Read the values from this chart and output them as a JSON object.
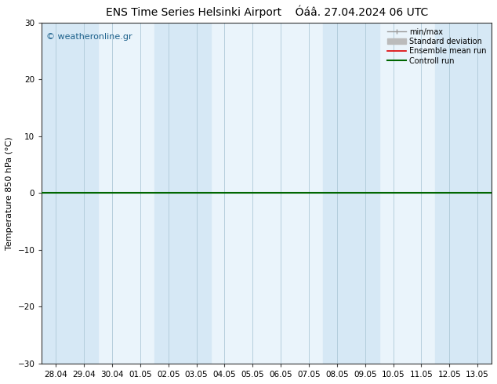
{
  "title": "ENS Time Series Helsinki Airport",
  "title2": "Óáâ. 27.04.2024 06 UTC",
  "ylabel": "Temperature 850 hPa (°C)",
  "watermark": "© weatheronline.gr",
  "ylim": [
    -30,
    30
  ],
  "yticks": [
    -30,
    -20,
    -10,
    0,
    10,
    20,
    30
  ],
  "x_labels": [
    "28.04",
    "29.04",
    "30.04",
    "01.05",
    "02.05",
    "03.05",
    "04.05",
    "05.05",
    "06.05",
    "07.05",
    "08.05",
    "09.05",
    "10.05",
    "11.05",
    "12.05",
    "13.05"
  ],
  "n_cols": 16,
  "shade_color": "#d6e8f5",
  "shade_alpha": 1.0,
  "bg_color": "#ffffff",
  "plot_bg_color": "#eaf4fb",
  "grid_color": "#aec8d8",
  "shaded_cols": [
    0,
    1,
    4,
    5,
    10,
    11,
    14,
    15
  ],
  "legend_items": [
    {
      "label": "min/max",
      "color": "#999999",
      "lw": 1.0
    },
    {
      "label": "Standard deviation",
      "color": "#bbbbbb",
      "lw": 5
    },
    {
      "label": "Ensemble mean run",
      "color": "#dd0000",
      "lw": 1.2
    },
    {
      "label": "Controll run",
      "color": "#006600",
      "lw": 1.5
    }
  ],
  "zero_line_color": "#006600",
  "zero_line_lw": 1.5,
  "title_fontsize": 10,
  "label_fontsize": 8,
  "tick_fontsize": 7.5,
  "watermark_color": "#1a5f8a",
  "watermark_fontsize": 8
}
